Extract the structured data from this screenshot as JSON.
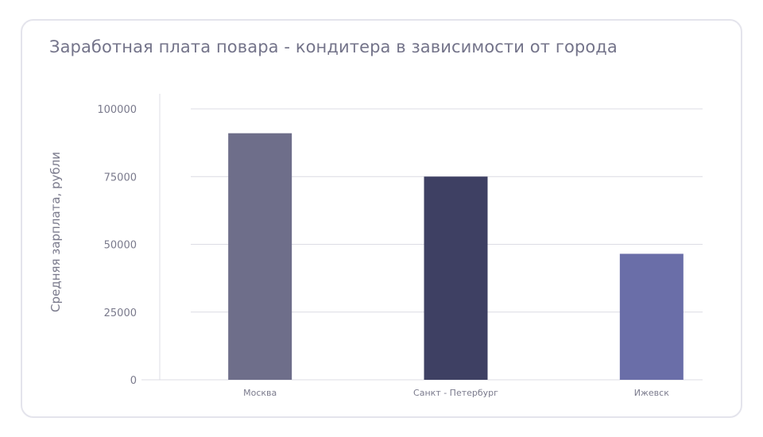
{
  "chart_data": {
    "type": "bar",
    "title": "Заработная плата повара - кондитера в зависимости от города",
    "xlabel": "",
    "ylabel": "Средняя зарплата, рубли",
    "categories": [
      "Москва",
      "Санкт - Петербург",
      "Ижевск"
    ],
    "values": [
      91000,
      75000,
      46500
    ],
    "bar_colors": [
      "#6e6e8a",
      "#3e4063",
      "#6a6ea8"
    ],
    "ylim": [
      0,
      100000
    ],
    "yticks": [
      0,
      25000,
      50000,
      75000,
      100000
    ],
    "grid": true,
    "gridline_color": "#dcdce4",
    "legend": "none"
  }
}
